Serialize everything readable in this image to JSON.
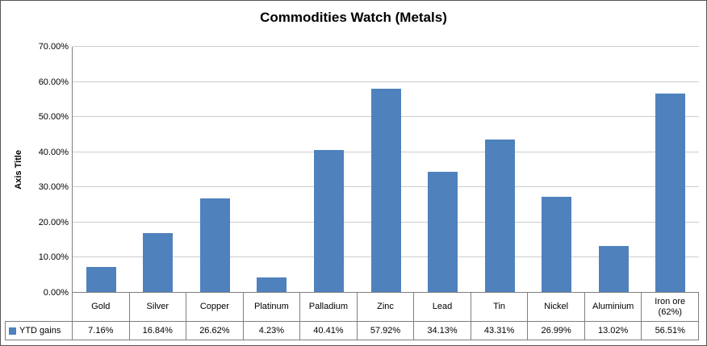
{
  "chart_data": {
    "type": "bar",
    "title": "Commodities Watch (Metals)",
    "ylabel": "Axis Title",
    "categories": [
      "Gold",
      "Silver",
      "Copper",
      "Platinum",
      "Palladium",
      "Zinc",
      "Lead",
      "Tin",
      "Nickel",
      "Aluminium",
      "Iron ore (62%)"
    ],
    "series": [
      {
        "name": "YTD gains",
        "values": [
          7.16,
          16.84,
          26.62,
          4.23,
          40.41,
          57.92,
          34.13,
          43.31,
          26.99,
          13.02,
          56.51
        ]
      }
    ],
    "value_labels": [
      "7.16%",
      "16.84%",
      "26.62%",
      "4.23%",
      "40.41%",
      "57.92%",
      "34.13%",
      "43.31%",
      "26.99%",
      "13.02%",
      "56.51%"
    ],
    "yticks": [
      "0.00%",
      "10.00%",
      "20.00%",
      "30.00%",
      "40.00%",
      "50.00%",
      "60.00%",
      "70.00%"
    ],
    "ylim": [
      0,
      70
    ],
    "bar_color": "#4f81bd",
    "grid": true,
    "legend": {
      "label": "YTD gains",
      "position": "data-table"
    }
  }
}
